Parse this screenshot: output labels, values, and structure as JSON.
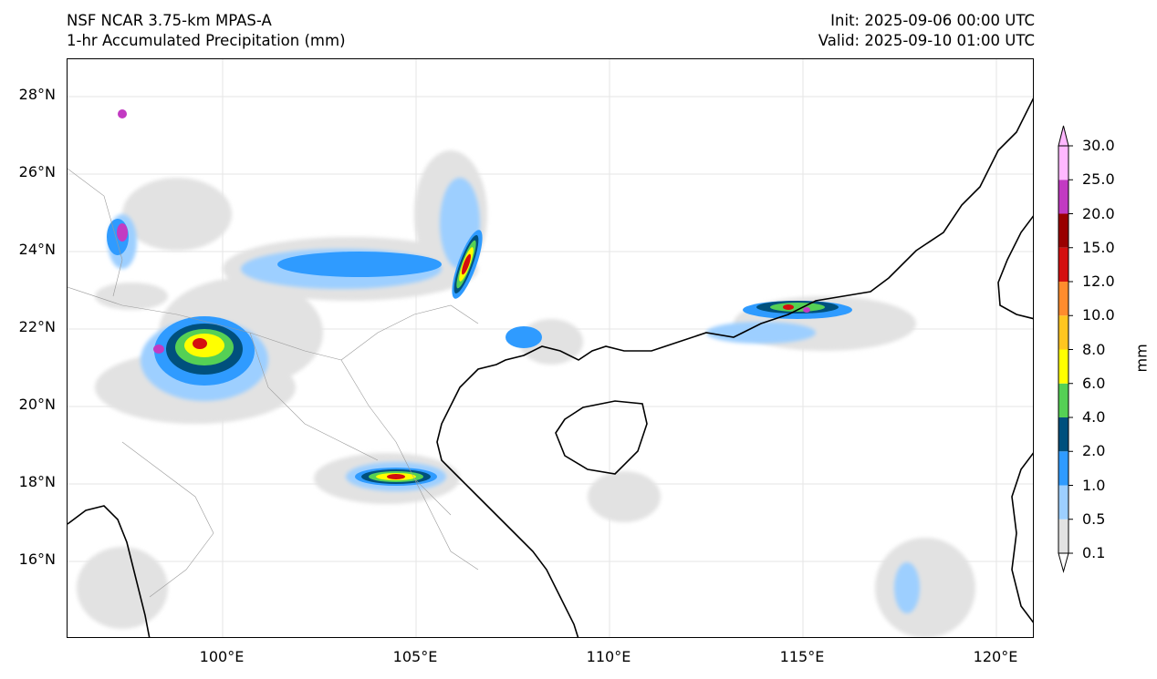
{
  "header": {
    "model_title": "NSF NCAR 3.75-km MPAS-A",
    "field_title": "1-hr Accumulated Precipitation (mm)",
    "init_time": "Init: 2025-09-06 00:00 UTC",
    "valid_time": "Valid: 2025-09-10 01:00 UTC"
  },
  "map": {
    "lon_range": [
      96,
      121
    ],
    "lat_range": [
      14,
      29
    ],
    "lat_ticks": [
      "28°N",
      "26°N",
      "24°N",
      "22°N",
      "20°N",
      "18°N",
      "16°N"
    ],
    "lon_ticks": [
      "100°E",
      "105°E",
      "110°E",
      "115°E",
      "120°E"
    ],
    "grid": true
  },
  "colorbar": {
    "unit": "mm",
    "extend": "max",
    "levels": [
      "0.1",
      "0.5",
      "1.0",
      "2.0",
      "4.0",
      "6.0",
      "8.0",
      "10.0",
      "12.0",
      "15.0",
      "20.0",
      "25.0",
      "30.0"
    ],
    "colors": [
      "#e2e2e2",
      "#9dcfff",
      "#2f9bff",
      "#00507d",
      "#55d055",
      "#ffff00",
      "#ffc61f",
      "#ff8c2d",
      "#d40f0f",
      "#990000",
      "#c23ac2",
      "#ffb8ff"
    ]
  }
}
